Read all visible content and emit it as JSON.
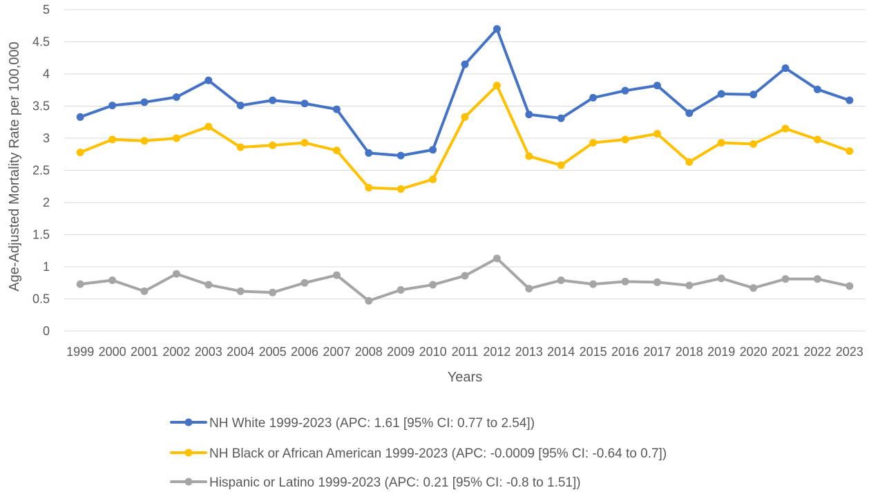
{
  "chart_data": {
    "type": "line",
    "xlabel": "Years",
    "ylabel": "Age-Adjusted Mortality Rate per 100,000",
    "ylim": [
      0,
      5
    ],
    "yticks": [
      "0",
      "0.5",
      "1",
      "1.5",
      "2",
      "2.5",
      "3",
      "3.5",
      "4",
      "4.5",
      "5"
    ],
    "grid": true,
    "legend_position": "bottom",
    "categories": [
      "1999",
      "2000",
      "2001",
      "2002",
      "2003",
      "2004",
      "2005",
      "2006",
      "2007",
      "2008",
      "2009",
      "2010",
      "2011",
      "2012",
      "2013",
      "2014",
      "2015",
      "2016",
      "2017",
      "2018",
      "2019",
      "2020",
      "2021",
      "2022",
      "2023"
    ],
    "series": [
      {
        "name": "NH White 1999-2023 (APC: 1.61 [95% CI: 0.77 to 2.54])",
        "color": "#4472c4",
        "values": [
          3.33,
          3.51,
          3.56,
          3.64,
          3.9,
          3.51,
          3.59,
          3.54,
          3.45,
          2.77,
          2.73,
          2.82,
          4.15,
          4.7,
          3.37,
          3.31,
          3.63,
          3.74,
          3.82,
          3.39,
          3.69,
          3.68,
          4.09,
          3.76,
          3.59
        ]
      },
      {
        "name": "NH Black or African American 1999-2023 (APC: -0.0009 [95% CI: -0.64 to 0.7])",
        "color": "#ffc000",
        "values": [
          2.78,
          2.98,
          2.96,
          3.0,
          3.18,
          2.86,
          2.89,
          2.93,
          2.81,
          2.23,
          2.21,
          2.36,
          3.33,
          3.82,
          2.72,
          2.58,
          2.93,
          2.98,
          3.07,
          2.63,
          2.93,
          2.91,
          3.15,
          2.98,
          2.8
        ]
      },
      {
        "name": "Hispanic or Latino 1999-2023 (APC: 0.21 [95% CI: -0.8 to 1.51])",
        "color": "#a5a5a5",
        "values": [
          0.73,
          0.79,
          0.62,
          0.89,
          0.72,
          0.62,
          0.6,
          0.75,
          0.87,
          0.47,
          0.64,
          0.72,
          0.86,
          1.13,
          0.66,
          0.79,
          0.73,
          0.77,
          0.76,
          0.71,
          0.82,
          0.67,
          0.81,
          0.81,
          0.7
        ]
      }
    ]
  }
}
